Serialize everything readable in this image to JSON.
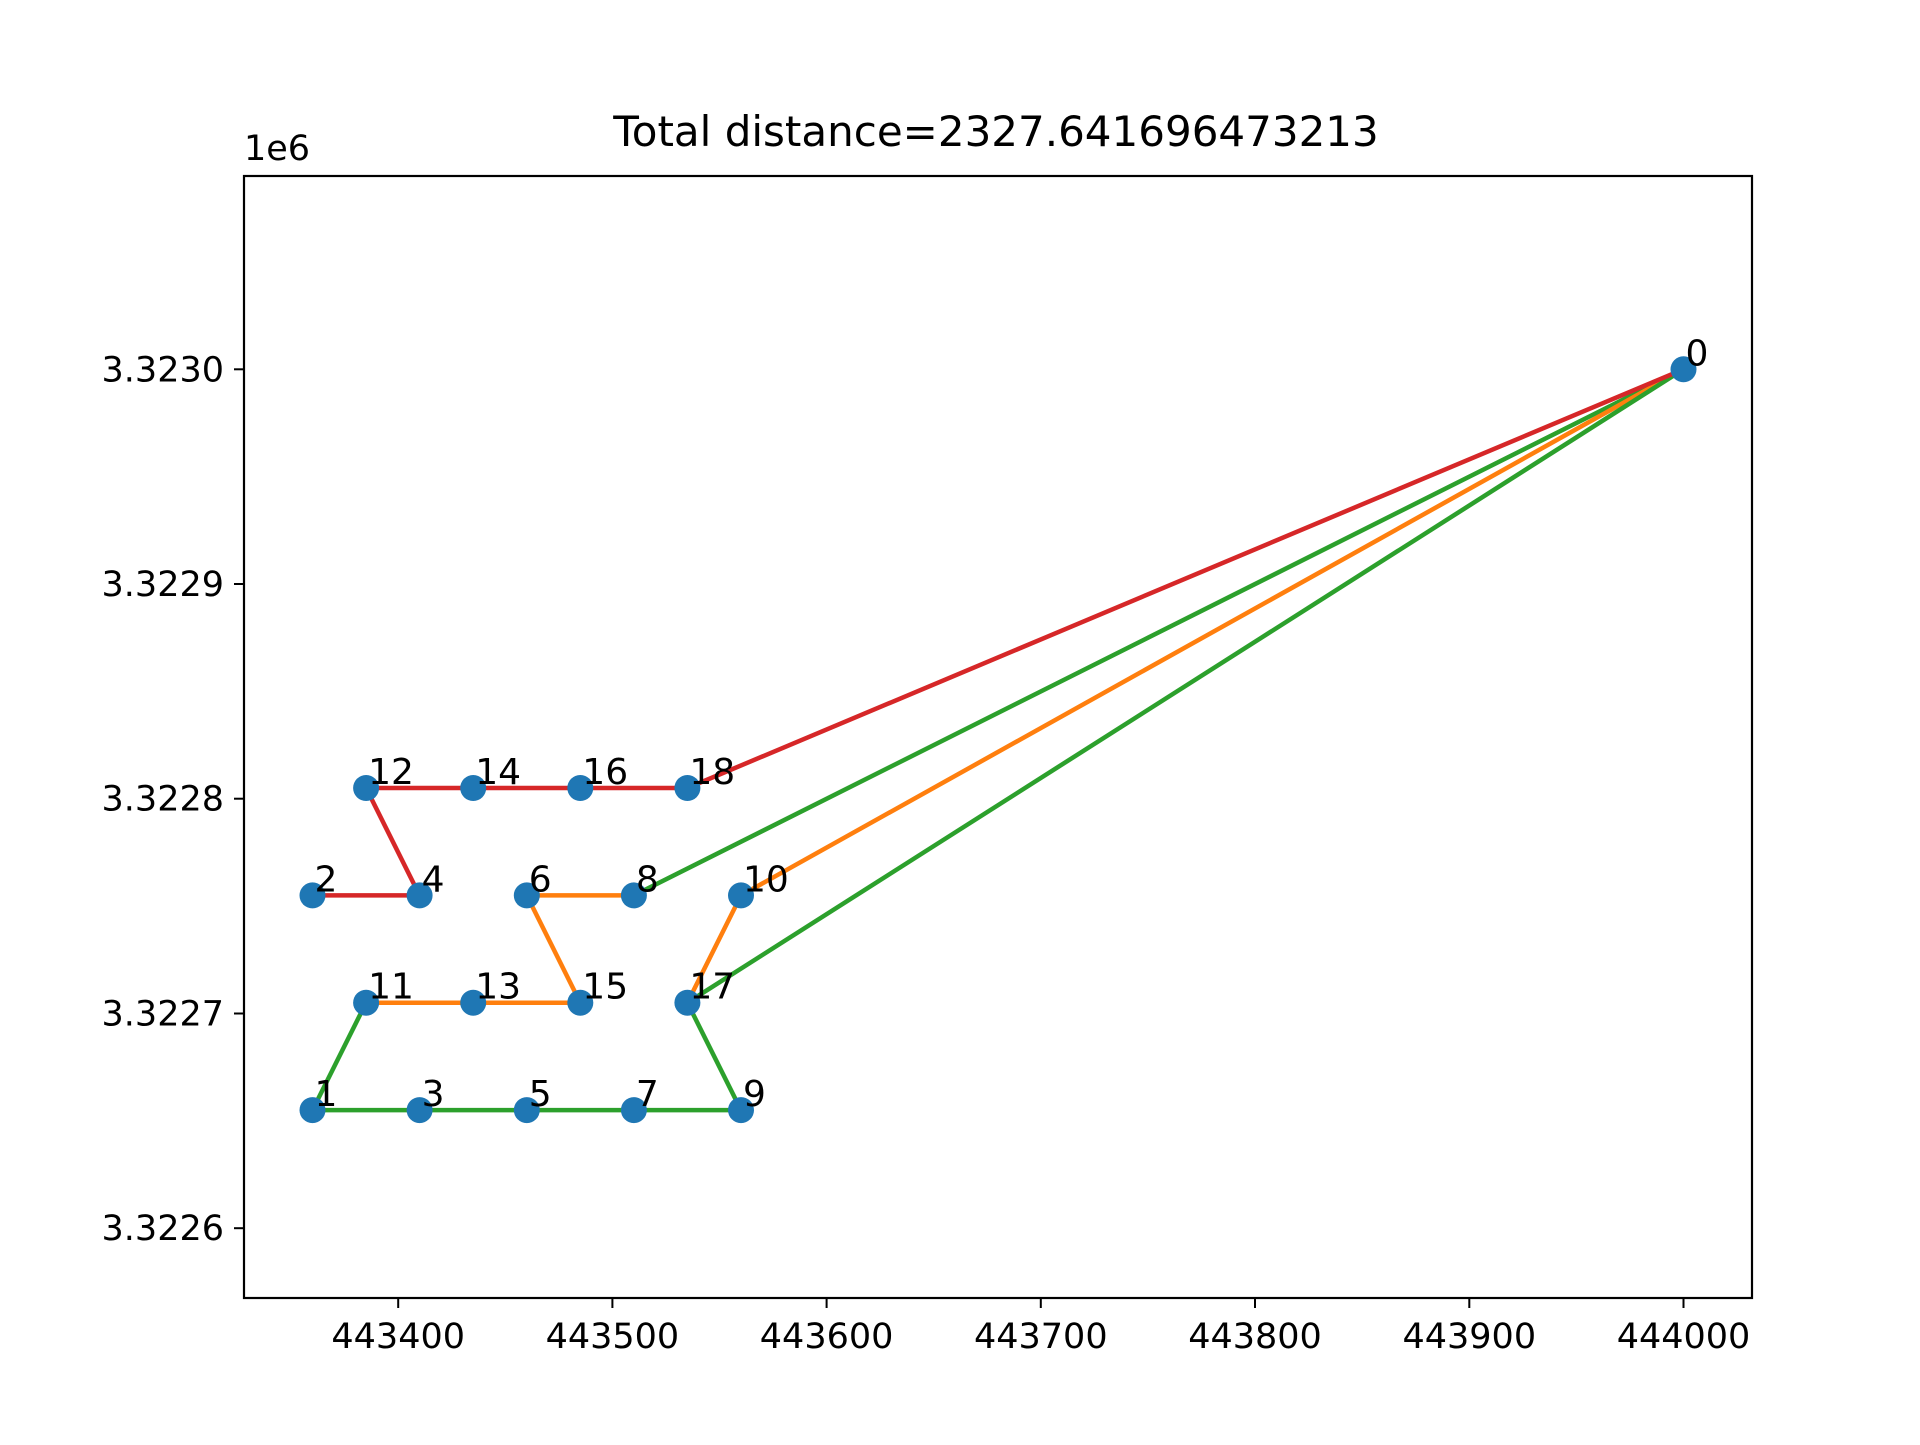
{
  "chart_data": {
    "type": "line",
    "title": "Total distance=2327.641696473213",
    "xlabel": "",
    "ylabel": "",
    "xlim": [
      443328,
      444032
    ],
    "ylim": [
      3322567.5,
      3323090
    ],
    "y_offset_label": "1e6",
    "x_ticks": [
      {
        "value": 443400,
        "label": "443400"
      },
      {
        "value": 443500,
        "label": "443500"
      },
      {
        "value": 443600,
        "label": "443600"
      },
      {
        "value": 443700,
        "label": "443700"
      },
      {
        "value": 443800,
        "label": "443800"
      },
      {
        "value": 443900,
        "label": "443900"
      },
      {
        "value": 444000,
        "label": "444000"
      }
    ],
    "y_ticks": [
      {
        "value": 3322600,
        "label": "3.3226"
      },
      {
        "value": 3322700,
        "label": "3.3227"
      },
      {
        "value": 3322800,
        "label": "3.3228"
      },
      {
        "value": 3322900,
        "label": "3.3229"
      },
      {
        "value": 3323000,
        "label": "3.3230"
      }
    ],
    "grid": false,
    "points": [
      {
        "label": "0",
        "x": 444000,
        "y": 3323000
      },
      {
        "label": "1",
        "x": 443360,
        "y": 3322655
      },
      {
        "label": "2",
        "x": 443360,
        "y": 3322755
      },
      {
        "label": "3",
        "x": 443410,
        "y": 3322655
      },
      {
        "label": "4",
        "x": 443410,
        "y": 3322755
      },
      {
        "label": "5",
        "x": 443460,
        "y": 3322655
      },
      {
        "label": "6",
        "x": 443460,
        "y": 3322755
      },
      {
        "label": "7",
        "x": 443510,
        "y": 3322655
      },
      {
        "label": "8",
        "x": 443510,
        "y": 3322755
      },
      {
        "label": "9",
        "x": 443560,
        "y": 3322655
      },
      {
        "label": "10",
        "x": 443560,
        "y": 3322755
      },
      {
        "label": "11",
        "x": 443385,
        "y": 3322705
      },
      {
        "label": "12",
        "x": 443385,
        "y": 3322805
      },
      {
        "label": "13",
        "x": 443435,
        "y": 3322705
      },
      {
        "label": "14",
        "x": 443435,
        "y": 3322805
      },
      {
        "label": "15",
        "x": 443485,
        "y": 3322705
      },
      {
        "label": "16",
        "x": 443485,
        "y": 3322805
      },
      {
        "label": "17",
        "x": 443535,
        "y": 3322705
      },
      {
        "label": "18",
        "x": 443535,
        "y": 3322805
      }
    ],
    "point_color": "#1f77b4",
    "routes": [
      {
        "color": "#2ca02c",
        "path": [
          0,
          8
        ]
      },
      {
        "color": "#ff7f0e",
        "path": [
          0,
          10,
          17
        ]
      },
      {
        "color": "#ff7f0e",
        "path": [
          8,
          6,
          15,
          13,
          11
        ]
      },
      {
        "color": "#2ca02c",
        "path": [
          0,
          17,
          9,
          7,
          5,
          3,
          1,
          11
        ]
      },
      {
        "color": "#d62728",
        "path": [
          0,
          18,
          16,
          14,
          12,
          4,
          2
        ]
      }
    ]
  }
}
